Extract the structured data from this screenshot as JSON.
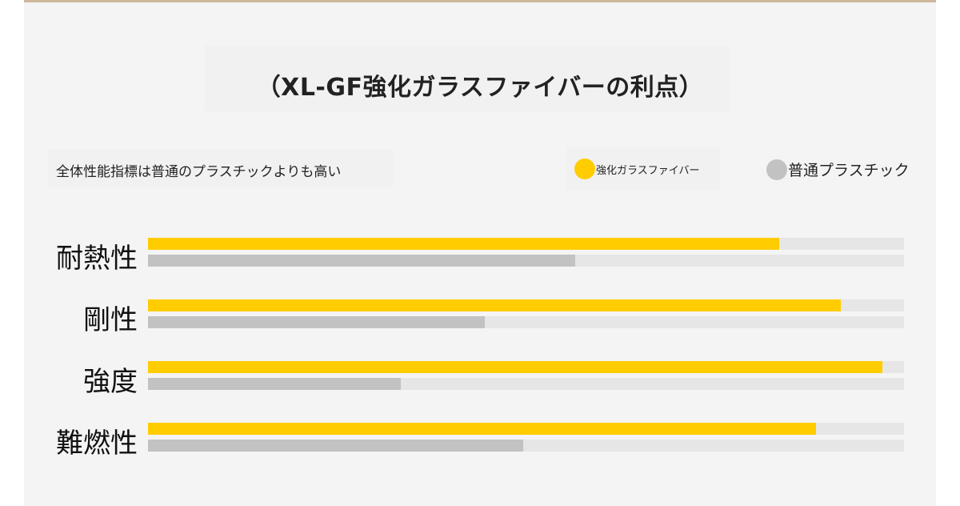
{
  "header": {
    "title": "（XL-GF強化ガラスファイバーの利点）",
    "subtitle": "全体性能指標は普通のプラスチックよりも高い"
  },
  "legend": {
    "series_a": "強化ガラスファイバー",
    "series_b": "普通プラスチック"
  },
  "colors": {
    "series_a": "#ffcc00",
    "series_b": "#c2c2c2",
    "track": "#e6e6e6"
  },
  "chart_data": {
    "type": "bar",
    "orientation": "horizontal",
    "categories": [
      "耐熱性",
      "剛性",
      "強度",
      "難燃性"
    ],
    "series": [
      {
        "name": "強化ガラスファイバー",
        "values": [
          83.5,
          91.6,
          97.1,
          88.4
        ]
      },
      {
        "name": "普通プラスチック",
        "values": [
          56.5,
          44.6,
          33.4,
          49.6
        ]
      }
    ],
    "xlim": [
      0,
      100
    ],
    "grid": false,
    "legend_position": "top-right"
  }
}
